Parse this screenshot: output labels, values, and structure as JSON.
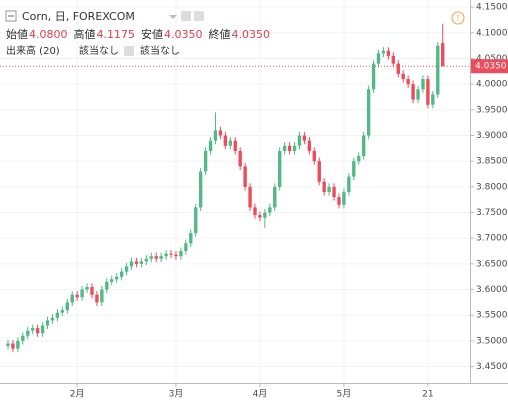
{
  "chart_data": {
    "type": "candlestick",
    "title": "Corn, 日, FOREXCOM",
    "ohlc_legend": [
      {
        "name": "始値",
        "value": "4.0800"
      },
      {
        "name": "高値",
        "value": "4.1175"
      },
      {
        "name": "安値",
        "value": "4.0350"
      },
      {
        "name": "終値",
        "value": "4.0350"
      }
    ],
    "volume_legend": {
      "name": "出来高 (20)",
      "values": [
        "該当なし",
        "該当なし"
      ]
    },
    "up_color": "#53b987",
    "down_color": "#eb4d5c",
    "last_price": {
      "value": 4.035,
      "label": "4.0350"
    },
    "categories": [
      null,
      null,
      null,
      null,
      null,
      null,
      null,
      null,
      null,
      null,
      null,
      null,
      null,
      null,
      "2月",
      null,
      null,
      null,
      null,
      null,
      null,
      null,
      null,
      null,
      null,
      null,
      null,
      null,
      null,
      null,
      null,
      null,
      null,
      null,
      "3月",
      null,
      null,
      null,
      null,
      null,
      null,
      null,
      null,
      null,
      null,
      null,
      null,
      null,
      null,
      null,
      null,
      "4月",
      null,
      null,
      null,
      null,
      null,
      null,
      null,
      null,
      null,
      null,
      null,
      null,
      null,
      null,
      null,
      null,
      "5月",
      null,
      null,
      null,
      null,
      null,
      null,
      null,
      null,
      null,
      null,
      null,
      null,
      null,
      null,
      null,
      null,
      "21",
      null,
      null,
      null
    ],
    "open": [
      3.49,
      3.495,
      3.485,
      3.5,
      3.51,
      3.52,
      3.525,
      3.515,
      3.53,
      3.54,
      3.545,
      3.555,
      3.56,
      3.575,
      3.59,
      3.585,
      3.6,
      3.605,
      3.59,
      3.575,
      3.6,
      3.615,
      3.62,
      3.625,
      3.635,
      3.645,
      3.655,
      3.65,
      3.655,
      3.66,
      3.665,
      3.66,
      3.665,
      3.67,
      3.668,
      3.665,
      3.675,
      3.69,
      3.71,
      3.76,
      3.83,
      3.87,
      3.89,
      3.91,
      3.9,
      3.88,
      3.89,
      3.87,
      3.84,
      3.8,
      3.76,
      3.745,
      3.74,
      3.75,
      3.76,
      3.8,
      3.87,
      3.88,
      3.87,
      3.88,
      3.9,
      3.89,
      3.87,
      3.85,
      3.81,
      3.79,
      3.8,
      3.78,
      3.765,
      3.79,
      3.82,
      3.85,
      3.86,
      3.9,
      3.99,
      4.04,
      4.06,
      4.065,
      4.055,
      4.04,
      4.02,
      4.01,
      4.0,
      3.97,
      3.99,
      4.01,
      3.96,
      3.98,
      4.08
    ],
    "high": [
      3.502,
      3.502,
      3.507,
      3.517,
      3.527,
      3.532,
      3.532,
      3.537,
      3.547,
      3.552,
      3.562,
      3.567,
      3.582,
      3.597,
      3.597,
      3.607,
      3.612,
      3.612,
      3.597,
      3.607,
      3.622,
      3.627,
      3.632,
      3.642,
      3.652,
      3.662,
      3.662,
      3.662,
      3.667,
      3.672,
      3.672,
      3.672,
      3.677,
      3.677,
      3.675,
      3.682,
      3.697,
      3.717,
      3.767,
      3.837,
      3.877,
      3.897,
      3.945,
      3.917,
      3.907,
      3.897,
      3.897,
      3.877,
      3.847,
      3.807,
      3.767,
      3.752,
      3.757,
      3.767,
      3.807,
      3.877,
      3.887,
      3.887,
      3.887,
      3.907,
      3.907,
      3.897,
      3.877,
      3.857,
      3.817,
      3.807,
      3.807,
      3.787,
      3.797,
      3.827,
      3.857,
      3.867,
      3.907,
      3.997,
      4.047,
      4.067,
      4.072,
      4.072,
      4.062,
      4.047,
      4.027,
      4.017,
      4.007,
      3.997,
      4.017,
      4.017,
      3.987,
      4.082,
      4.1175
    ],
    "low": [
      3.483,
      3.478,
      3.478,
      3.493,
      3.503,
      3.513,
      3.508,
      3.508,
      3.523,
      3.533,
      3.538,
      3.548,
      3.553,
      3.568,
      3.578,
      3.578,
      3.593,
      3.583,
      3.568,
      3.568,
      3.593,
      3.608,
      3.613,
      3.618,
      3.628,
      3.638,
      3.643,
      3.643,
      3.648,
      3.653,
      3.653,
      3.653,
      3.658,
      3.661,
      3.658,
      3.658,
      3.668,
      3.683,
      3.703,
      3.753,
      3.823,
      3.863,
      3.883,
      3.893,
      3.873,
      3.873,
      3.863,
      3.833,
      3.793,
      3.753,
      3.738,
      3.733,
      3.72,
      3.743,
      3.753,
      3.793,
      3.863,
      3.863,
      3.863,
      3.873,
      3.883,
      3.863,
      3.843,
      3.803,
      3.783,
      3.783,
      3.773,
      3.758,
      3.758,
      3.783,
      3.813,
      3.843,
      3.853,
      3.893,
      3.983,
      4.033,
      4.053,
      4.048,
      4.033,
      4.013,
      4.003,
      3.993,
      3.963,
      3.963,
      3.983,
      3.953,
      3.953,
      3.973,
      4.035
    ],
    "close": [
      3.495,
      3.485,
      3.5,
      3.51,
      3.52,
      3.525,
      3.515,
      3.53,
      3.54,
      3.545,
      3.555,
      3.56,
      3.575,
      3.59,
      3.585,
      3.6,
      3.605,
      3.59,
      3.575,
      3.6,
      3.615,
      3.62,
      3.625,
      3.635,
      3.645,
      3.655,
      3.65,
      3.655,
      3.66,
      3.665,
      3.66,
      3.665,
      3.67,
      3.668,
      3.665,
      3.675,
      3.69,
      3.71,
      3.76,
      3.83,
      3.87,
      3.89,
      3.91,
      3.9,
      3.88,
      3.89,
      3.87,
      3.84,
      3.8,
      3.76,
      3.745,
      3.74,
      3.75,
      3.76,
      3.8,
      3.87,
      3.88,
      3.87,
      3.88,
      3.9,
      3.89,
      3.87,
      3.85,
      3.81,
      3.79,
      3.8,
      3.78,
      3.765,
      3.79,
      3.82,
      3.85,
      3.86,
      3.9,
      3.99,
      4.04,
      4.06,
      4.065,
      4.055,
      4.04,
      4.02,
      4.01,
      4.0,
      3.97,
      3.99,
      4.01,
      3.96,
      3.98,
      4.075,
      4.035
    ],
    "ylim": [
      3.42,
      4.16
    ],
    "yticks": [
      {
        "value": 3.45,
        "label": "3.4500"
      },
      {
        "value": 3.5,
        "label": "3.5000"
      },
      {
        "value": 3.55,
        "label": "3.5500"
      },
      {
        "value": 3.6,
        "label": "3.6000"
      },
      {
        "value": 3.65,
        "label": "3.6500"
      },
      {
        "value": 3.7,
        "label": "3.7000"
      },
      {
        "value": 3.75,
        "label": "3.7500"
      },
      {
        "value": 3.8,
        "label": "3.8000"
      },
      {
        "value": 3.85,
        "label": "3.8500"
      },
      {
        "value": 3.9,
        "label": "3.9000"
      },
      {
        "value": 3.95,
        "label": "3.9500"
      },
      {
        "value": 4.0,
        "label": "4.0000"
      },
      {
        "value": 4.05,
        "label": "4.0500"
      },
      {
        "value": 4.1,
        "label": "4.1000"
      },
      {
        "value": 4.15,
        "label": "4.1500"
      }
    ],
    "grid": true
  }
}
